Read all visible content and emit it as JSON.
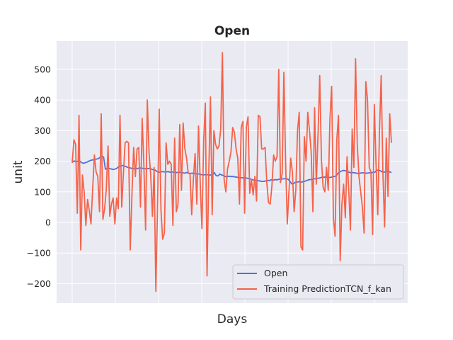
{
  "chart_data": {
    "type": "line",
    "title": "Open",
    "xlabel": "Days",
    "ylabel": "unit",
    "ylim": [
      -260,
      590
    ],
    "yticks": [
      -200,
      -100,
      0,
      100,
      200,
      300,
      400,
      500
    ],
    "xtick_labels_visible": false,
    "grid": true,
    "legend_position": "lower-right",
    "colors": {
      "background": "#eaeaf2",
      "grid": "#ffffff"
    },
    "series": [
      {
        "name": "Open",
        "color": "#4c72d8",
        "values": [
          196,
          201,
          199,
          200,
          201,
          196,
          193,
          195,
          197,
          200,
          203,
          204,
          206,
          207,
          208,
          212,
          215,
          214,
          174,
          177,
          176,
          175,
          173,
          174,
          176,
          181,
          183,
          186,
          185,
          183,
          180,
          179,
          177,
          176,
          175,
          176,
          177,
          178,
          177,
          176,
          175,
          176,
          177,
          174,
          172,
          171,
          166,
          164,
          165,
          166,
          165,
          165,
          166,
          164,
          165,
          164,
          163,
          163,
          164,
          163,
          162,
          161,
          163,
          161,
          160,
          161,
          160,
          159,
          158,
          158,
          156,
          155,
          156,
          156,
          155,
          155,
          155,
          163,
          153,
          152,
          158,
          155,
          153,
          150,
          149,
          151,
          150,
          150,
          149,
          148,
          147,
          146,
          146,
          145,
          146,
          144,
          143,
          141,
          139,
          138,
          137,
          136,
          135,
          134,
          134,
          136,
          137,
          137,
          140,
          138,
          140,
          139,
          141,
          142,
          142,
          143,
          143,
          141,
          134,
          126,
          127,
          131,
          132,
          133,
          131,
          133,
          134,
          137,
          139,
          140,
          141,
          142,
          143,
          144,
          145,
          147,
          148,
          148,
          148,
          147,
          147,
          149,
          150,
          152,
          160,
          165,
          168,
          170,
          169,
          167,
          164,
          162,
          163,
          162,
          161,
          160,
          161,
          162,
          162,
          161,
          161,
          162,
          163,
          163,
          164,
          170,
          171,
          169,
          165,
          164,
          166,
          168,
          165,
          163
        ]
      },
      {
        "name": "Training PredictionTCN_f_kan",
        "color": "#f4634a",
        "values": [
          195,
          270,
          255,
          30,
          350,
          -90,
          155,
          100,
          -10,
          75,
          40,
          -5,
          110,
          220,
          165,
          150,
          35,
          355,
          10,
          45,
          110,
          250,
          20,
          60,
          80,
          -5,
          80,
          45,
          350,
          50,
          160,
          260,
          265,
          260,
          -90,
          90,
          245,
          150,
          240,
          245,
          50,
          340,
          185,
          -25,
          400,
          230,
          155,
          20,
          180,
          -225,
          55,
          370,
          40,
          -55,
          -35,
          260,
          190,
          200,
          190,
          -10,
          275,
          35,
          60,
          320,
          105,
          325,
          240,
          210,
          160,
          160,
          25,
          145,
          225,
          60,
          315,
          130,
          -20,
          265,
          390,
          -175,
          160,
          410,
          25,
          300,
          255,
          240,
          250,
          305,
          555,
          140,
          100,
          175,
          200,
          230,
          310,
          295,
          240,
          210,
          60,
          310,
          330,
          30,
          310,
          345,
          95,
          140,
          90,
          150,
          70,
          350,
          345,
          240,
          240,
          245,
          130,
          65,
          60,
          120,
          220,
          200,
          215,
          500,
          130,
          160,
          490,
          200,
          -5,
          105,
          210,
          165,
          35,
          105,
          300,
          360,
          -80,
          -90,
          280,
          200,
          360,
          300,
          230,
          35,
          375,
          125,
          285,
          480,
          205,
          115,
          100,
          180,
          105,
          340,
          445,
          15,
          -45,
          270,
          350,
          -125,
          60,
          125,
          15,
          215,
          105,
          -25,
          305,
          180,
          535,
          255,
          150,
          100,
          50,
          -35,
          460,
          400,
          180,
          165,
          -40,
          385,
          190,
          25,
          300,
          480,
          165,
          -15,
          275,
          85,
          355,
          260
        ]
      }
    ]
  }
}
